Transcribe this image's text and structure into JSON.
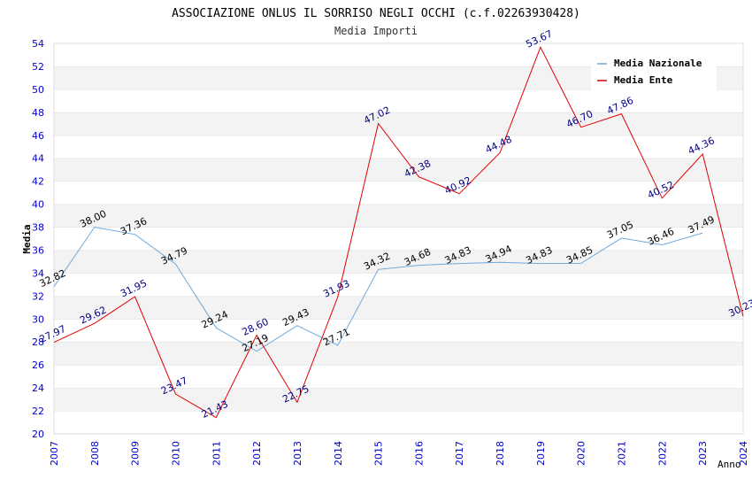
{
  "chart_data": {
    "type": "line",
    "title": "ASSOCIAZIONE ONLUS IL SORRISO NEGLI OCCHI (c.f.02263930428)",
    "subtitle": "Media Importi",
    "xlabel": "Anno",
    "ylabel": "Media",
    "ylim": [
      20,
      54
    ],
    "y_ticks": [
      20,
      22,
      24,
      26,
      28,
      30,
      32,
      34,
      36,
      38,
      40,
      42,
      44,
      46,
      48,
      50,
      52,
      54
    ],
    "x": [
      "2007",
      "2008",
      "2009",
      "2010",
      "2011",
      "2012",
      "2013",
      "2014",
      "2015",
      "2016",
      "2017",
      "2018",
      "2019",
      "2020",
      "2021",
      "2022",
      "2023",
      "2024"
    ],
    "grid": "horizontal alternating bands",
    "legend_position": "top-right",
    "series": [
      {
        "name": "Media Nazionale",
        "color": "#6fa8dc",
        "label_color": "#000000",
        "values": [
          32.82,
          38.0,
          37.36,
          34.79,
          29.24,
          27.19,
          29.43,
          27.71,
          34.32,
          34.68,
          34.83,
          34.94,
          34.83,
          34.85,
          37.05,
          36.46,
          37.49,
          null
        ],
        "labels": [
          "32.82",
          "38.00",
          "37.36",
          "34.79",
          "29.24",
          "27.19",
          "29.43",
          "27.71",
          "34.32",
          "34.68",
          "34.83",
          "34.94",
          "34.83",
          "34.85",
          "37.05",
          "36.46",
          "37.49",
          null
        ]
      },
      {
        "name": "Media Ente",
        "color": "#e00000",
        "label_color": "#000080",
        "values": [
          27.97,
          29.62,
          31.95,
          23.47,
          21.43,
          28.6,
          22.75,
          31.93,
          47.02,
          42.38,
          40.92,
          44.48,
          53.67,
          46.7,
          47.86,
          40.52,
          44.36,
          30.23
        ],
        "labels": [
          "27.97",
          "29.62",
          "31.95",
          "23.47",
          "21.43",
          "28.60",
          "22.75",
          "31.93",
          "47.02",
          "42.38",
          "40.92",
          "44.48",
          "53.67",
          "46.70",
          "47.86",
          "40.52",
          "44.36",
          "30.23"
        ]
      }
    ]
  }
}
